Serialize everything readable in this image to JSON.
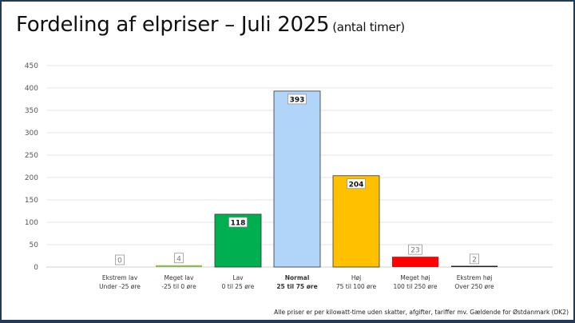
{
  "chart_data": {
    "type": "bar",
    "title": "Fordeling af elpriser – Juli 2025",
    "subtitle": "(antal timer)",
    "xlabel": "",
    "ylabel": "",
    "ylim": [
      0,
      450
    ],
    "yticks": [
      0,
      50,
      100,
      150,
      200,
      250,
      300,
      350,
      400,
      450
    ],
    "grid": true,
    "categories": [
      {
        "name": "Ekstrem lav",
        "range": "Under -25 øre",
        "bold": false
      },
      {
        "name": "Meget lav",
        "range": "-25 til 0 øre",
        "bold": false
      },
      {
        "name": "Lav",
        "range": "0 til 25 øre",
        "bold": false
      },
      {
        "name": "Normal",
        "range": "25 til 75 øre",
        "bold": true
      },
      {
        "name": "Høj",
        "range": "75 til 100 øre",
        "bold": false
      },
      {
        "name": "Meget høj",
        "range": "100 til 250 øre",
        "bold": false
      },
      {
        "name": "Ekstrem høj",
        "range": "Over 250 øre",
        "bold": false
      }
    ],
    "values": [
      0,
      4,
      118,
      393,
      204,
      23,
      2
    ],
    "colors": [
      "#5b2d8e",
      "#8cbd5a",
      "#00b050",
      "#b1d5f9",
      "#ffc000",
      "#ff0000",
      "#222222"
    ],
    "footnote": "Alle priser er per kilowatt-time uden skatter, afgifter, tariffer mv. Gældende for Østdanmark (DK2)"
  }
}
